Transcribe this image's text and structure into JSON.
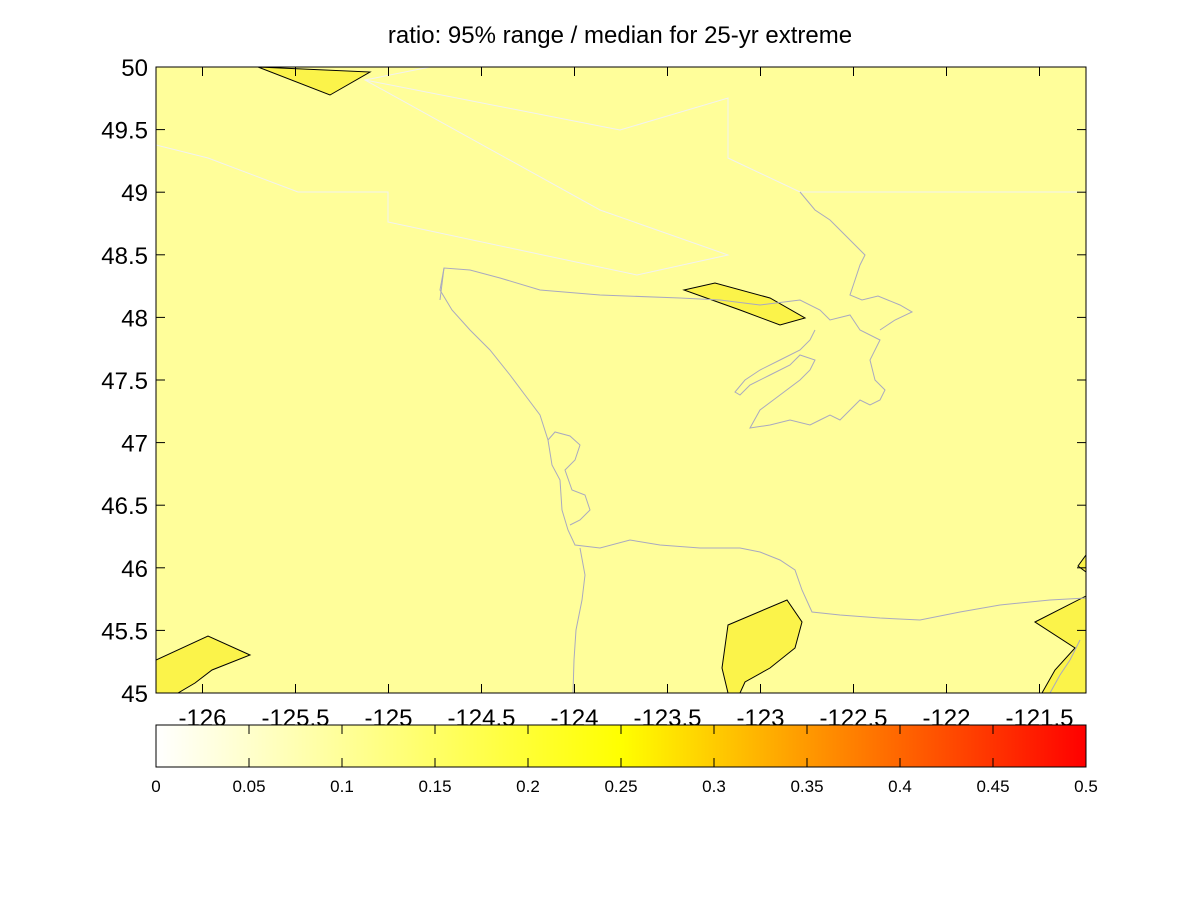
{
  "title": "ratio: 95% range / median for 25-yr extreme",
  "map": {
    "x_ticks": [
      "-126",
      "-125.5",
      "-125",
      "-124.5",
      "-124",
      "-123.5",
      "-123",
      "-122.5",
      "-122",
      "-121.5"
    ],
    "y_ticks": [
      "45",
      "45.5",
      "46",
      "46.5",
      "47",
      "47.5",
      "48",
      "48.5",
      "49",
      "49.5",
      "50"
    ],
    "lon_range": [
      -126.25,
      -121.25
    ],
    "lat_range": [
      45,
      50
    ],
    "background_color": "#fffe9a",
    "patch_color": "#fbf34a",
    "coastline_color": "#a9a9c0"
  },
  "colorbar": {
    "tick_labels": [
      "0",
      "0.05",
      "0.1",
      "0.15",
      "0.2",
      "0.25",
      "0.3",
      "0.35",
      "0.4",
      "0.45",
      "0.5"
    ],
    "range": [
      0,
      0.5
    ],
    "colors": [
      "#ffffff",
      "#ffff80",
      "#ffff00",
      "#ff8000",
      "#ff0000"
    ]
  }
}
